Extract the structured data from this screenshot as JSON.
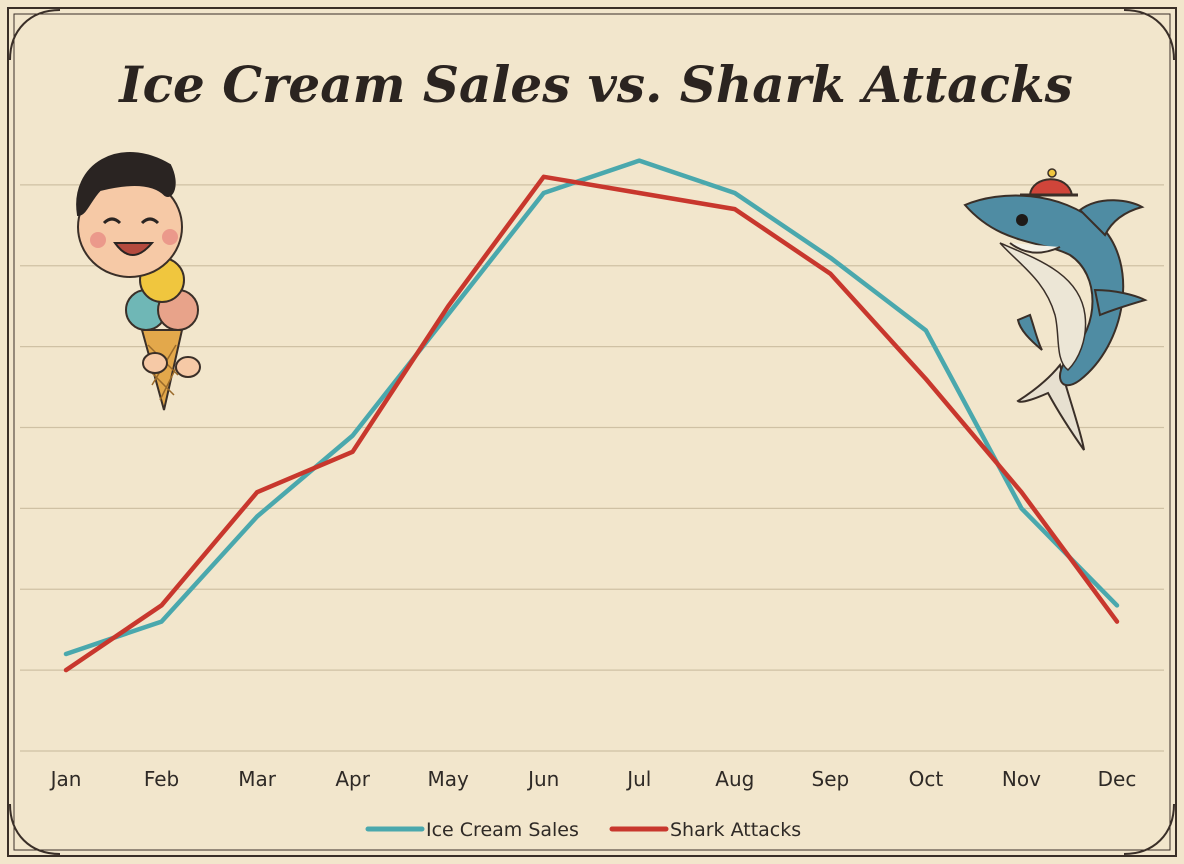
{
  "chart_data": {
    "type": "line",
    "title": "Ice Cream Sales vs. Shark Attacks",
    "categories": [
      "Jan",
      "Feb",
      "Mar",
      "Apr",
      "May",
      "Jun",
      "Jul",
      "Aug",
      "Sep",
      "Oct",
      "Nov",
      "Dec"
    ],
    "ylim": [
      0,
      8
    ],
    "grid": true,
    "legend_position": "bottom-center",
    "series": [
      {
        "name": "Ice Cream Sales",
        "color": "#4aa8ad",
        "values": [
          1.2,
          1.6,
          2.9,
          3.9,
          5.4,
          6.9,
          7.3,
          6.9,
          6.1,
          5.2,
          3.0,
          1.8
        ]
      },
      {
        "name": "Shark Attacks",
        "color": "#c8372d",
        "values": [
          1.0,
          1.8,
          3.2,
          3.7,
          5.5,
          7.1,
          6.9,
          6.7,
          5.9,
          4.6,
          3.2,
          1.6
        ]
      }
    ]
  },
  "illustrations": {
    "left": "boy-with-ice-cream-cone-icon",
    "right": "cartoon-shark-with-cap-icon"
  }
}
